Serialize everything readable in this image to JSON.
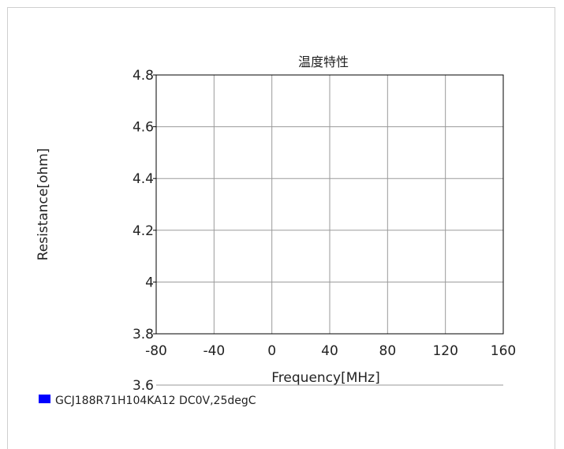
{
  "chart_data": {
    "type": "line",
    "title": "温度特性",
    "xlabel": "Frequency[MHz]",
    "ylabel": "Resistance[ohm]",
    "xlim": [
      -80,
      160
    ],
    "ylim": [
      3.8,
      4.8
    ],
    "x_ticks": [
      -80,
      -40,
      0,
      40,
      80,
      120,
      160
    ],
    "y_ticks": [
      4.8,
      4.6,
      4.4,
      4.2,
      4,
      3.8
    ],
    "y_extra_ticks": [
      3.6
    ],
    "grid": true,
    "legend_position": "bottom-left",
    "series": [
      {
        "name": "GCJ188R71H104KA12 DC0V,25degC",
        "color": "#0000ff",
        "points": []
      }
    ]
  },
  "colors": {
    "grid": "#9a9a9a",
    "axis": "#000000",
    "frame": "#cfcfcf"
  }
}
